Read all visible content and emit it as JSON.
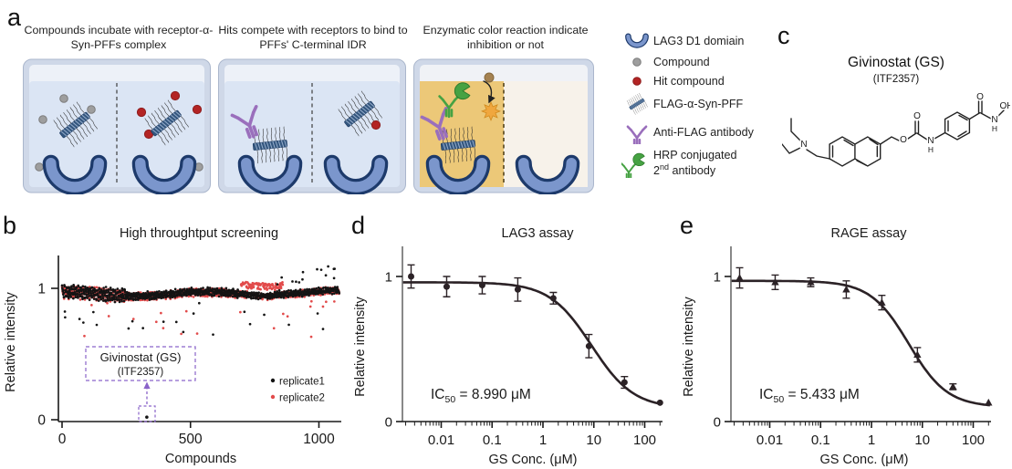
{
  "figure": {
    "panel_labels": {
      "a": "a",
      "b": "b",
      "c": "c",
      "d": "d",
      "e": "e"
    }
  },
  "panel_a": {
    "steps": [
      {
        "title": "Compounds incubate with receptor-α-Syn-PFFs complex"
      },
      {
        "title": "Hits compete with receptors to bind to PFFs' C-terminal IDR"
      },
      {
        "title": "Enzymatic color reaction indicate inhibition or not"
      }
    ],
    "legend": {
      "items": [
        {
          "icon": "lag3-icon",
          "label": "LAG3 D1 domiain"
        },
        {
          "icon": "compound-icon",
          "label": "Compound"
        },
        {
          "icon": "hit-compound-icon",
          "label": "Hit compound"
        },
        {
          "icon": "pff-icon",
          "label": "FLAG-α-Syn-PFF"
        },
        {
          "icon": "antibody-icon",
          "label": "Anti-FLAG antibody"
        },
        {
          "icon": "hrp-icon",
          "label_line1": "HRP conjugated",
          "label_line2": {
            "base": "2",
            "sup": "nd",
            "rest": " antibody"
          }
        }
      ]
    },
    "colors": {
      "well_liquid": "#dbe5f4",
      "amber": "#ecc878",
      "pale": "#f7f2ea",
      "lag3_blue": "#7b96cc",
      "antibody_purple": "#9a6fbc",
      "hrp_green": "#46a243",
      "compound_grey": "#9e9e9e",
      "hit_red": "#b32424"
    }
  },
  "panel_c": {
    "title": "Givinostat (GS)",
    "subtitle": "(ITF2357)",
    "atoms": [
      "N",
      "O",
      "O",
      "N",
      "H",
      "O",
      "N",
      "H",
      "OH"
    ]
  },
  "chart_data": [
    {
      "type": "scatter",
      "title": "High throughtput screening",
      "xlabel": "Compounds",
      "ylabel": "Relative intensity",
      "xlim": [
        0,
        1080
      ],
      "ylim": [
        0,
        1.25
      ],
      "x_ticks": [
        0,
        500,
        1000
      ],
      "y_ticks": [
        0,
        1
      ],
      "n_compounds": 1080,
      "band_mean": 0.96,
      "band_noise": 0.03,
      "legend_position": "lower right",
      "series": [
        {
          "name": "replicate1",
          "color": "#141414"
        },
        {
          "name": "replicate2",
          "color": "#e24b4b"
        }
      ],
      "highlight": {
        "compound_index": 330,
        "value": 0.02,
        "series": "replicate1",
        "label_line1": "Givinostat (GS)",
        "label_line2": "(ITF2357)",
        "box_color": "#8a63c9"
      }
    },
    {
      "type": "line",
      "title": "LAG3 assay",
      "xlabel": "GS Conc. (μM)",
      "ylabel": "Relative intensity",
      "x_scale": "log",
      "marker": "circle",
      "color": "#2b2226",
      "x": [
        0.00256,
        0.0128,
        0.064,
        0.32,
        1.6,
        8,
        40,
        200
      ],
      "y": [
        1.0,
        0.93,
        0.94,
        0.91,
        0.85,
        0.52,
        0.27,
        0.13
      ],
      "yerr": [
        0.08,
        0.07,
        0.06,
        0.08,
        0.04,
        0.08,
        0.04,
        0.01
      ],
      "x_tick_labels": [
        "0.01",
        "0.1",
        "1",
        "10",
        "100"
      ],
      "y_ticks": [
        0,
        1
      ],
      "ylim": [
        0,
        1.2
      ],
      "fit": {
        "top": 0.96,
        "bottom": 0.09,
        "ic50": 8.99,
        "hill": 1.05
      },
      "ic50_label": {
        "prefix": "IC",
        "sub": "50",
        "rest": " = 8.990 μM"
      }
    },
    {
      "type": "line",
      "title": "RAGE assay",
      "xlabel": "GS Conc. (μM)",
      "ylabel": "Relative intensity",
      "x_scale": "log",
      "marker": "triangle",
      "color": "#2b2226",
      "x": [
        0.00256,
        0.0128,
        0.064,
        0.32,
        1.6,
        8,
        40,
        200
      ],
      "y": [
        0.99,
        0.96,
        0.96,
        0.91,
        0.82,
        0.46,
        0.24,
        0.13
      ],
      "yerr": [
        0.07,
        0.05,
        0.03,
        0.06,
        0.05,
        0.05,
        0.02,
        0.01
      ],
      "x_tick_labels": [
        "0.01",
        "0.1",
        "1",
        "10",
        "100"
      ],
      "y_ticks": [
        0,
        1
      ],
      "ylim": [
        0,
        1.2
      ],
      "fit": {
        "top": 0.97,
        "bottom": 0.1,
        "ic50": 5.433,
        "hill": 1.15
      },
      "ic50_label": {
        "prefix": "IC",
        "sub": "50",
        "rest": " = 5.433 μM"
      }
    }
  ]
}
